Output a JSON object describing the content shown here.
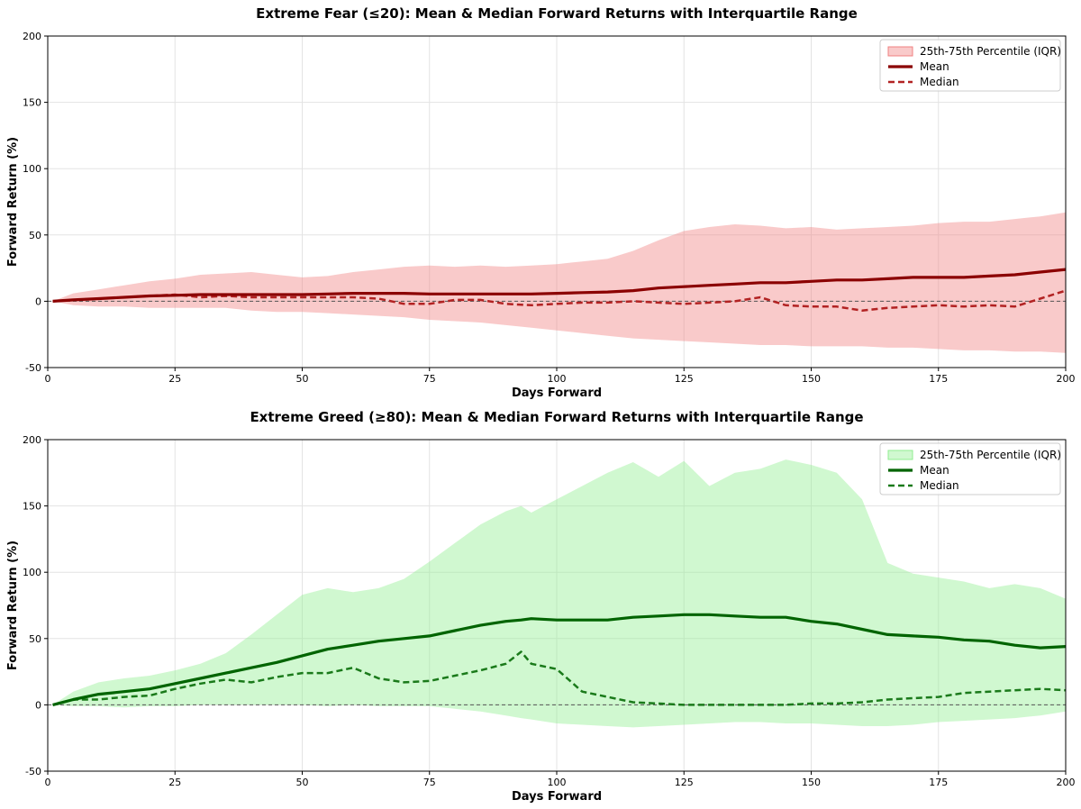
{
  "chart_data": [
    {
      "type": "line",
      "title": "Extreme Fear (≤20): Mean & Median Forward Returns with Interquartile Range",
      "xlabel": "Days Forward",
      "ylabel": "Forward Return (%)",
      "xlim": [
        0,
        200
      ],
      "ylim": [
        -50,
        200
      ],
      "xticks": [
        0,
        25,
        50,
        75,
        100,
        125,
        150,
        175,
        200
      ],
      "yticks": [
        -50,
        0,
        50,
        100,
        150,
        200
      ],
      "grid": true,
      "legend_position": "top-right",
      "colors": {
        "mean": "#8b0000",
        "median": "#b22222",
        "band": "#f08080"
      },
      "x": [
        1,
        5,
        10,
        15,
        20,
        25,
        30,
        35,
        40,
        45,
        50,
        55,
        60,
        65,
        70,
        75,
        80,
        85,
        90,
        95,
        100,
        105,
        110,
        115,
        120,
        125,
        130,
        135,
        140,
        145,
        150,
        155,
        160,
        165,
        170,
        175,
        180,
        185,
        190,
        195,
        200
      ],
      "series": [
        {
          "name": "Mean",
          "style": "solid",
          "values": [
            0,
            1,
            2,
            3,
            4,
            4.5,
            5,
            5,
            5,
            5,
            5,
            5.5,
            6,
            6,
            6,
            5.5,
            5.5,
            5.5,
            5.5,
            5.5,
            6,
            6.5,
            7,
            8,
            10,
            11,
            12,
            13,
            14,
            14,
            15,
            16,
            16,
            17,
            18,
            18,
            18,
            19,
            20,
            22,
            24
          ]
        },
        {
          "name": "Median",
          "style": "dashed",
          "values": [
            0,
            1,
            2,
            3,
            4,
            5,
            3,
            4,
            3,
            3,
            3,
            3,
            3,
            2,
            -2,
            -2,
            1,
            1,
            -2,
            -3,
            -2,
            -1,
            -1,
            0,
            -1,
            -2,
            -1,
            0,
            3,
            -3,
            -4,
            -4,
            -7,
            -5,
            -4,
            -3,
            -4,
            -3,
            -4,
            2,
            8
          ]
        },
        {
          "name": "25th-75th Percentile (IQR)",
          "style": "band",
          "upper": [
            0,
            6,
            9,
            12,
            15,
            17,
            20,
            21,
            22,
            20,
            18,
            19,
            22,
            24,
            26,
            27,
            26,
            27,
            26,
            27,
            28,
            30,
            32,
            38,
            46,
            53,
            56,
            58,
            57,
            55,
            56,
            54,
            55,
            56,
            57,
            59,
            60,
            60,
            62,
            64,
            67
          ],
          "lower": [
            0,
            -3,
            -4,
            -4,
            -5,
            -5,
            -5,
            -5,
            -7,
            -8,
            -8,
            -9,
            -10,
            -11,
            -12,
            -14,
            -15,
            -16,
            -18,
            -20,
            -22,
            -24,
            -26,
            -28,
            -29,
            -30,
            -31,
            -32,
            -33,
            -33,
            -34,
            -34,
            -34,
            -35,
            -35,
            -36,
            -37,
            -37,
            -38,
            -38,
            -39
          ]
        }
      ],
      "legend": [
        "25th-75th Percentile (IQR)",
        "Mean",
        "Median"
      ]
    },
    {
      "type": "line",
      "title": "Extreme Greed (≥80): Mean & Median Forward Returns with Interquartile Range",
      "xlabel": "Days Forward",
      "ylabel": "Forward Return (%)",
      "xlim": [
        0,
        200
      ],
      "ylim": [
        -50,
        200
      ],
      "xticks": [
        0,
        25,
        50,
        75,
        100,
        125,
        150,
        175,
        200
      ],
      "yticks": [
        -50,
        0,
        50,
        100,
        150,
        200
      ],
      "grid": true,
      "legend_position": "top-right",
      "colors": {
        "mean": "#006400",
        "median": "#1a7a1a",
        "band": "#90ee90"
      },
      "x": [
        1,
        5,
        10,
        15,
        20,
        25,
        30,
        35,
        40,
        45,
        50,
        55,
        60,
        65,
        70,
        75,
        80,
        85,
        90,
        93,
        95,
        100,
        105,
        110,
        115,
        120,
        125,
        130,
        135,
        140,
        145,
        150,
        155,
        160,
        165,
        170,
        175,
        180,
        185,
        190,
        195,
        200
      ],
      "series": [
        {
          "name": "Mean",
          "style": "solid",
          "values": [
            0,
            4,
            8,
            10,
            12,
            16,
            20,
            24,
            28,
            32,
            37,
            42,
            45,
            48,
            50,
            52,
            56,
            60,
            63,
            64,
            65,
            64,
            64,
            64,
            66,
            67,
            68,
            68,
            67,
            66,
            66,
            63,
            61,
            57,
            53,
            52,
            51,
            49,
            48,
            45,
            43,
            44
          ]
        },
        {
          "name": "Median",
          "style": "dashed",
          "values": [
            0,
            4,
            4,
            6,
            7,
            12,
            16,
            19,
            17,
            21,
            24,
            24,
            28,
            20,
            17,
            18,
            22,
            26,
            31,
            40,
            31,
            27,
            10,
            6,
            2,
            1,
            0,
            0,
            0,
            0,
            0,
            1,
            1,
            2,
            4,
            5,
            6,
            9,
            10,
            11,
            12,
            11
          ]
        },
        {
          "name": "25th-75th Percentile (IQR)",
          "style": "band",
          "upper": [
            0,
            10,
            17,
            20,
            22,
            26,
            31,
            39,
            53,
            68,
            83,
            88,
            85,
            88,
            95,
            108,
            122,
            136,
            146,
            150,
            145,
            155,
            165,
            175,
            183,
            172,
            184,
            165,
            175,
            178,
            185,
            181,
            175,
            155,
            107,
            99,
            96,
            93,
            88,
            91,
            88,
            80
          ],
          "lower": [
            0,
            -1,
            -1,
            -2,
            -1,
            -1,
            0,
            0,
            0,
            0,
            0,
            -1,
            0,
            -1,
            -1,
            -1,
            -3,
            -5,
            -8,
            -10,
            -11,
            -14,
            -15,
            -16,
            -17,
            -16,
            -15,
            -14,
            -13,
            -13,
            -14,
            -14,
            -15,
            -16,
            -16,
            -15,
            -13,
            -12,
            -11,
            -10,
            -8,
            -5
          ]
        }
      ],
      "legend": [
        "25th-75th Percentile (IQR)",
        "Mean",
        "Median"
      ]
    }
  ]
}
